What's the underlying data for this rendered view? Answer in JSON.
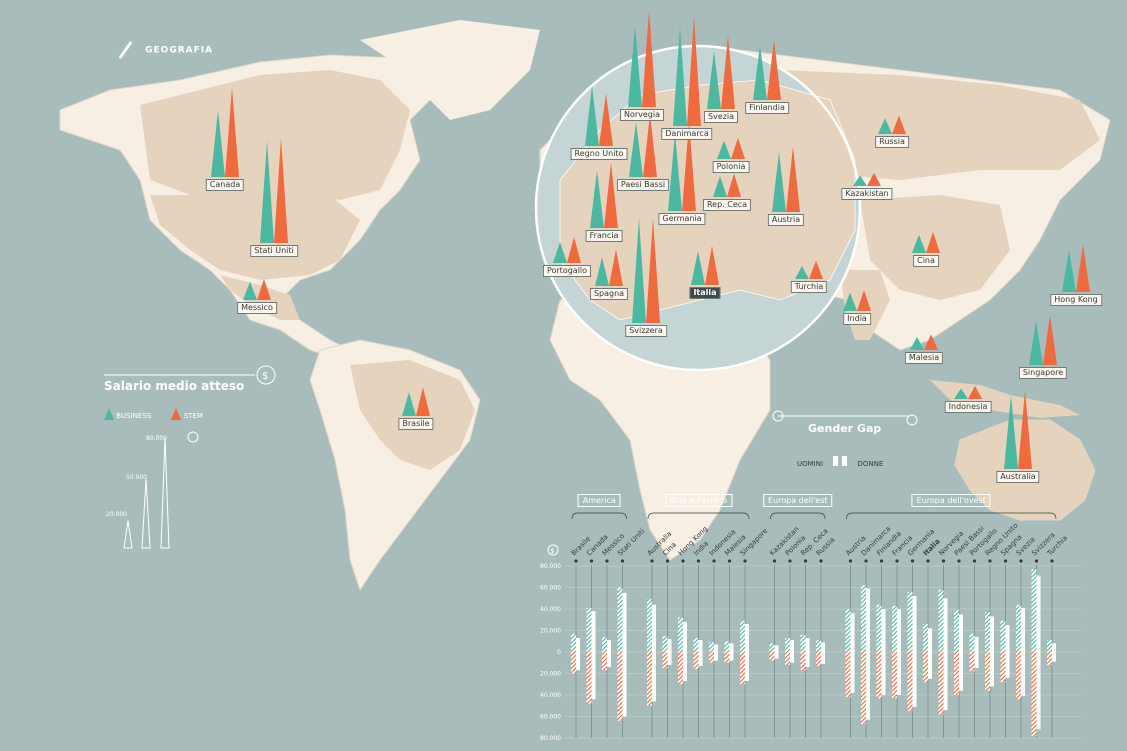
{
  "header": {
    "label": "GEOGRAFIA"
  },
  "colors": {
    "business": "#4db8a2",
    "stem": "#ee6a3f",
    "land": "#f7efe4",
    "land_highlight": "#e5d3be",
    "sea": "#a9bcbc"
  },
  "legend": {
    "title": "Salario medio atteso",
    "business_label": "BUSINESS",
    "stem_label": "STEM",
    "currency_symbol": "$",
    "scale_labels": [
      "80.000",
      "50.000",
      "20.000"
    ]
  },
  "gender_gap": {
    "title": "Gender Gap",
    "men_label": "UOMINI",
    "women_label": "DONNE"
  },
  "map_labels": [
    {
      "name": "Canada"
    },
    {
      "name": "Stati Uniti"
    },
    {
      "name": "Messico"
    },
    {
      "name": "Brasile"
    },
    {
      "name": "Norvegia"
    },
    {
      "name": "Danimarca"
    },
    {
      "name": "Svezia"
    },
    {
      "name": "Finlandia"
    },
    {
      "name": "Regno Unito"
    },
    {
      "name": "Paesi Bassi"
    },
    {
      "name": "Polonia"
    },
    {
      "name": "Rep. Ceca"
    },
    {
      "name": "Germania"
    },
    {
      "name": "Austria"
    },
    {
      "name": "Francia"
    },
    {
      "name": "Portogallo"
    },
    {
      "name": "Spagna"
    },
    {
      "name": "Italia"
    },
    {
      "name": "Svizzera"
    },
    {
      "name": "Turchia"
    },
    {
      "name": "Russia"
    },
    {
      "name": "Kazakistan"
    },
    {
      "name": "Cina"
    },
    {
      "name": "Hong Kong"
    },
    {
      "name": "India"
    },
    {
      "name": "Malesia"
    },
    {
      "name": "Singapore"
    },
    {
      "name": "Indonesia"
    },
    {
      "name": "Australia"
    }
  ],
  "chart_data": {
    "type": "bar",
    "ylabel": "$",
    "ylim": [
      -80000,
      80000
    ],
    "yticks": [
      "80.000",
      "60.000",
      "40.000",
      "20.000",
      "0",
      "20.000",
      "40.000",
      "60.000",
      "80.000"
    ],
    "regions": [
      "America",
      "Asia e Pacifico",
      "Europa dell'est",
      "Europa dell'ovest"
    ],
    "categories": [
      "Brasile",
      "Canada",
      "Messico",
      "Stati Uniti",
      "Australia",
      "Cina",
      "Hong Kong",
      "India",
      "Indonesia",
      "Malesia",
      "Singapore",
      "Kazakistan",
      "Polonia",
      "Rep. Ceca",
      "Russia",
      "Austria",
      "Danimarca",
      "Finlandia",
      "Francia",
      "Germania",
      "Italia",
      "Norvegia",
      "Paesi Bassi",
      "Portogallo",
      "Regno Unito",
      "Spagna",
      "Svezia",
      "Svizzera",
      "Turchia"
    ],
    "highlight": "Italia",
    "series": [
      {
        "name": "BUSINESS",
        "group": "UOMINI",
        "values": [
          17000,
          41000,
          14000,
          60000,
          49000,
          15000,
          32000,
          13000,
          9000,
          10000,
          29000,
          8000,
          13000,
          16000,
          11000,
          40000,
          62000,
          44000,
          43000,
          56000,
          26000,
          58000,
          39000,
          17000,
          37000,
          29000,
          44000,
          77000,
          11000
        ]
      },
      {
        "name": "BUSINESS",
        "group": "DONNE",
        "values": [
          13000,
          38000,
          11000,
          55000,
          44000,
          12000,
          28000,
          11000,
          7000,
          8000,
          26000,
          6000,
          11000,
          13000,
          9000,
          36000,
          59000,
          40000,
          40000,
          52000,
          22000,
          50000,
          35000,
          14000,
          33000,
          25000,
          41000,
          71000,
          8000
        ]
      },
      {
        "name": "STEM",
        "group": "UOMINI",
        "values": [
          -20000,
          -48000,
          -17000,
          -64000,
          -50000,
          -15000,
          -30000,
          -16000,
          -10000,
          -10000,
          -30000,
          -8000,
          -12000,
          -17000,
          -13000,
          -42000,
          -67000,
          -43000,
          -43000,
          -55000,
          -28000,
          -58000,
          -40000,
          -18000,
          -36000,
          -28000,
          -44000,
          -78000,
          -12000
        ]
      },
      {
        "name": "STEM",
        "group": "DONNE",
        "values": [
          -17000,
          -44000,
          -14000,
          -60000,
          -46000,
          -12000,
          -27000,
          -13000,
          -8000,
          -8000,
          -27000,
          -6000,
          -10000,
          -14000,
          -11000,
          -38000,
          -63000,
          -40000,
          -40000,
          -51000,
          -25000,
          -54000,
          -36000,
          -15000,
          -32000,
          -24000,
          -41000,
          -72000,
          -9000
        ]
      }
    ],
    "map_glyphs": [
      {
        "country": "Canada",
        "business": 51000,
        "stem": 68000
      },
      {
        "country": "Stati Uniti",
        "business": 78000,
        "stem": 80000
      },
      {
        "country": "Messico",
        "business": 14000,
        "stem": 16000
      },
      {
        "country": "Brasile",
        "business": 18000,
        "stem": 22000
      },
      {
        "country": "Norvegia",
        "business": 62000,
        "stem": 74000
      },
      {
        "country": "Danimarca",
        "business": 76000,
        "stem": 84000
      },
      {
        "country": "Svezia",
        "business": 44000,
        "stem": 56000
      },
      {
        "country": "Finlandia",
        "business": 42000,
        "stem": 46000
      },
      {
        "country": "Regno Unito",
        "business": 46000,
        "stem": 40000
      },
      {
        "country": "Paesi Bassi",
        "business": 42000,
        "stem": 48000
      },
      {
        "country": "Polonia",
        "business": 14000,
        "stem": 16000
      },
      {
        "country": "Rep. Ceca",
        "business": 16000,
        "stem": 18000
      },
      {
        "country": "Germania",
        "business": 60000,
        "stem": 68000
      },
      {
        "country": "Austria",
        "business": 46000,
        "stem": 50000
      },
      {
        "country": "Francia",
        "business": 44000,
        "stem": 50000
      },
      {
        "country": "Portogallo",
        "business": 16000,
        "stem": 20000
      },
      {
        "country": "Spagna",
        "business": 22000,
        "stem": 28000
      },
      {
        "country": "Italia",
        "business": 26000,
        "stem": 30000
      },
      {
        "country": "Svizzera",
        "business": 80000,
        "stem": 80000
      },
      {
        "country": "Turchia",
        "business": 10000,
        "stem": 14000
      },
      {
        "country": "Russia",
        "business": 12000,
        "stem": 14000
      },
      {
        "country": "Kazakistan",
        "business": 8000,
        "stem": 10000
      },
      {
        "country": "Cina",
        "business": 14000,
        "stem": 16000
      },
      {
        "country": "Hong Kong",
        "business": 32000,
        "stem": 36000
      },
      {
        "country": "India",
        "business": 14000,
        "stem": 16000
      },
      {
        "country": "Malesia",
        "business": 10000,
        "stem": 12000
      },
      {
        "country": "Singapore",
        "business": 34000,
        "stem": 38000
      },
      {
        "country": "Indonesia",
        "business": 8000,
        "stem": 10000
      },
      {
        "country": "Australia",
        "business": 56000,
        "stem": 60000
      }
    ]
  }
}
